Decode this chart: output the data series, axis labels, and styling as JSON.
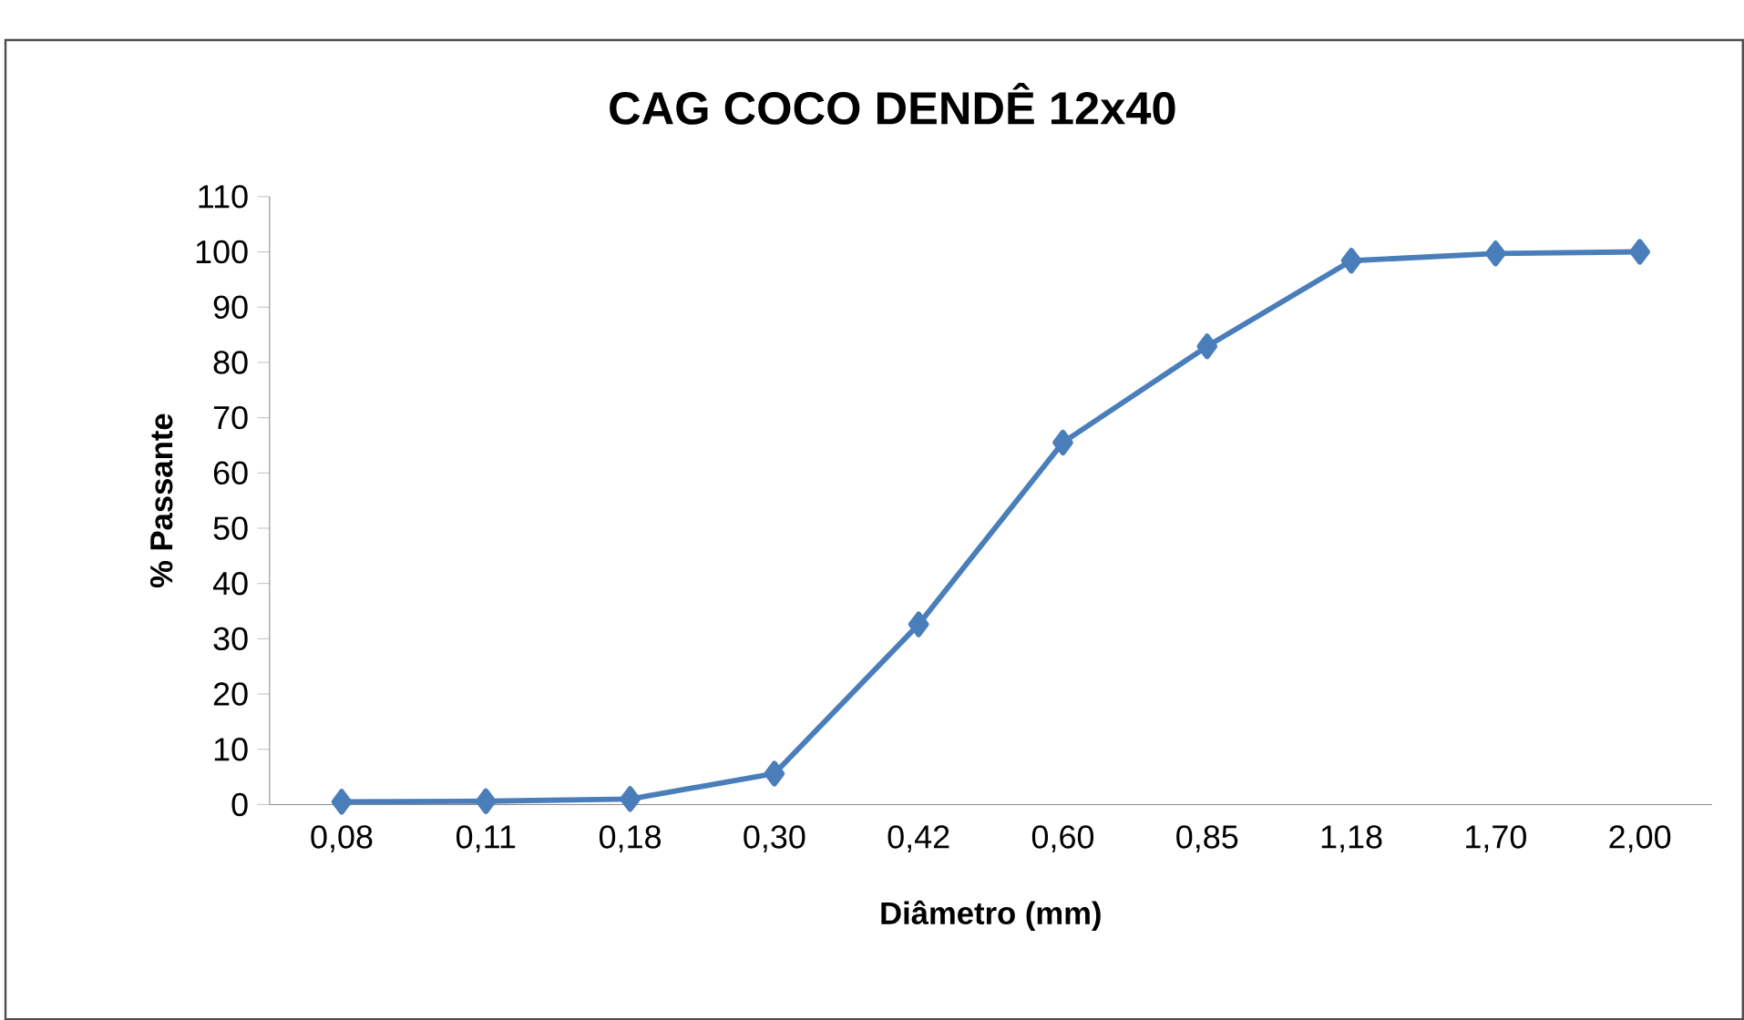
{
  "chart_data": {
    "type": "line",
    "title": "CAG COCO DENDÊ 12x40",
    "xlabel": "Diâmetro (mm)",
    "ylabel": "% Passante",
    "categories": [
      "0,08",
      "0,11",
      "0,18",
      "0,30",
      "0,42",
      "0,60",
      "0,85",
      "1,18",
      "1,70",
      "2,00"
    ],
    "series": [
      {
        "color": "#4a7ebb",
        "values": [
          0.5,
          0.6,
          1.0,
          5.6,
          32.6,
          65.5,
          82.9,
          98.4,
          99.7,
          100
        ]
      }
    ],
    "ylim": [
      0,
      110
    ],
    "yticks": [
      0,
      10,
      20,
      30,
      40,
      50,
      60,
      70,
      80,
      90,
      100,
      110
    ],
    "marker": "diamond",
    "line_style": "solid",
    "grid": false
  }
}
